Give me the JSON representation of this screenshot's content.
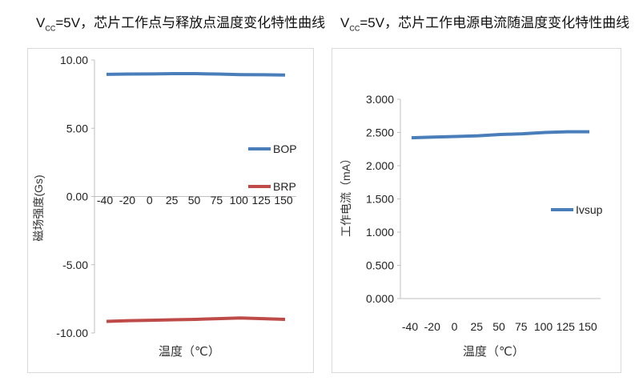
{
  "chart_data": [
    {
      "type": "line",
      "title_prefix": "V",
      "title_sub": "CC",
      "title_rest": "=5V，芯片工作点与释放点温度变化特性曲线",
      "categories": [
        "-40",
        "-20",
        "0",
        "25",
        "50",
        "75",
        "100",
        "125",
        "150"
      ],
      "ylabel": "磁场强度(Gs)",
      "xlabel": "温度（℃）",
      "ylim": [
        -10,
        10
      ],
      "yticks": [
        "10.00",
        "5.00",
        "0.00",
        "-5.00",
        "-10.00"
      ],
      "ytick_values": [
        10,
        5,
        0,
        -5,
        -10
      ],
      "legend": "right",
      "grid": false,
      "series": [
        {
          "name": "BOP",
          "color": "#4a7ebb",
          "values": [
            8.95,
            8.97,
            8.98,
            9.0,
            9.0,
            8.97,
            8.93,
            8.92,
            8.9
          ]
        },
        {
          "name": "BRP",
          "color": "#be4b48",
          "values": [
            -9.15,
            -9.1,
            -9.07,
            -9.03,
            -9.0,
            -8.95,
            -8.9,
            -8.95,
            -9.0
          ]
        }
      ]
    },
    {
      "type": "line",
      "title_prefix": "V",
      "title_sub": "CC",
      "title_rest": "=5V，芯片工作电源电流随温度变化特性曲线",
      "categories": [
        "-40",
        "-20",
        "0",
        "25",
        "50",
        "75",
        "100",
        "125",
        "150"
      ],
      "ylabel": "工作电流（mA）",
      "xlabel": "温度（℃）",
      "ylim": [
        0,
        3
      ],
      "yticks": [
        "3.000",
        "2.500",
        "2.000",
        "1.500",
        "1.000",
        "0.500",
        "0.000"
      ],
      "ytick_values": [
        3,
        2.5,
        2,
        1.5,
        1,
        0.5,
        0
      ],
      "legend": "right",
      "grid": false,
      "series": [
        {
          "name": "Ivsup",
          "color": "#4a7ebb",
          "values": [
            2.42,
            2.43,
            2.44,
            2.45,
            2.47,
            2.48,
            2.5,
            2.51,
            2.51
          ]
        }
      ]
    }
  ]
}
